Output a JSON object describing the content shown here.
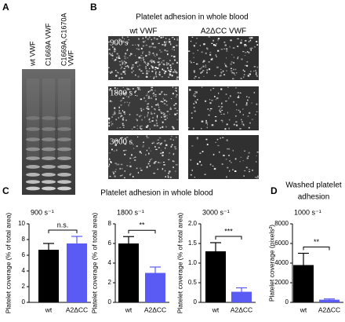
{
  "panel_labels": [
    "A",
    "B",
    "C",
    "D"
  ],
  "gel": {
    "lanes": [
      [
        "wt VWF"
      ],
      [
        "C1669A VWF"
      ],
      [
        "C1669A,C1670A",
        "VWF"
      ]
    ]
  },
  "microscopy": {
    "title": "Platelet adhesion in whole blood",
    "columns": [
      "wt VWF",
      "A2ΔCC VWF"
    ],
    "rows": [
      "900 s",
      "1800 s",
      "3000 s"
    ]
  },
  "section_c_title": "Platelet adhesion in whole blood",
  "section_d_title": [
    "Washed platelet",
    "adhesion"
  ],
  "chart_data": [
    {
      "type": "bar",
      "title": "900 s⁻¹",
      "ylabel": "Platelet coverage (% of total area)",
      "categories": [
        "wt",
        "A2ΔCC"
      ],
      "values": [
        6.7,
        7.5
      ],
      "errors": [
        0.8,
        0.9
      ],
      "colors": [
        "#000000",
        "#5a5af5"
      ],
      "ylim": [
        0,
        10
      ],
      "yticks": [
        0,
        2,
        4,
        6,
        8,
        10
      ],
      "significance": "n.s."
    },
    {
      "type": "bar",
      "title": "1800 s⁻¹",
      "ylabel": "Platelet coverage (% of total area)",
      "categories": [
        "wt",
        "A2ΔCC"
      ],
      "values": [
        6.0,
        3.0
      ],
      "errors": [
        0.7,
        0.6
      ],
      "colors": [
        "#000000",
        "#5a5af5"
      ],
      "ylim": [
        0,
        8
      ],
      "yticks": [
        0,
        2,
        4,
        6,
        8
      ],
      "significance": "**"
    },
    {
      "type": "bar",
      "title": "3000 s⁻¹",
      "ylabel": "Platelet coverage (% of total area)",
      "categories": [
        "wt",
        "A2ΔCC"
      ],
      "values": [
        1.3,
        0.27
      ],
      "errors": [
        0.22,
        0.1
      ],
      "colors": [
        "#000000",
        "#5a5af5"
      ],
      "ylim": [
        0,
        2
      ],
      "yticks": [
        0,
        0.5,
        {
          "value": 1,
          "label": "1.0"
        },
        {
          "value": 1.5,
          "label": "1.5"
        },
        {
          "value": 2,
          "label": "2.0"
        }
      ],
      "significance": "***"
    },
    {
      "type": "bar",
      "title": "1000 s⁻¹",
      "ylabel": "Platelet coverage (pixels²)",
      "categories": [
        "wt",
        "A2ΔCC"
      ],
      "values": [
        3800,
        270
      ],
      "errors": [
        1200,
        80
      ],
      "colors": [
        "#000000",
        "#5a5af5"
      ],
      "ylim": [
        0,
        8000
      ],
      "yticks": [
        0,
        2000,
        4000,
        6000,
        8000
      ],
      "significance": "**"
    }
  ]
}
